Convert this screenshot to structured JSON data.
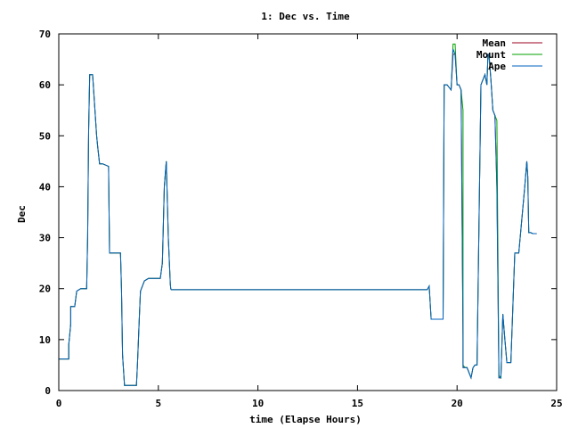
{
  "chart_data": {
    "type": "line",
    "title": "1: Dec vs. Time",
    "xlabel": "time (Elapse Hours)",
    "ylabel": "Dec",
    "xlim": [
      0,
      25
    ],
    "ylim": [
      0,
      70
    ],
    "x_ticks": [
      0,
      5,
      10,
      15,
      20,
      25
    ],
    "y_ticks": [
      0,
      10,
      20,
      30,
      40,
      50,
      60,
      70
    ],
    "grid": false,
    "legend_position": "top-right",
    "series": [
      {
        "name": "Mean",
        "color": "#9b0020",
        "x": [
          0,
          0.5,
          0.5,
          0.6,
          0.6,
          0.8,
          0.9,
          1.1,
          1.4,
          1.45,
          1.5,
          1.55,
          1.6,
          1.7,
          1.9,
          1.95,
          2.05,
          2.2,
          2.2,
          2.5,
          2.55,
          2.6,
          3.1,
          3.15,
          3.2,
          3.3,
          3.35,
          3.9,
          3.95,
          4.05,
          4.1,
          4.3,
          4.5,
          5.1,
          5.2,
          5.3,
          5.4,
          5.5,
          5.6,
          5.62,
          5.65,
          5.7,
          18.5,
          18.6,
          18.7,
          19.3,
          19.35,
          19.5,
          19.7,
          19.8,
          19.9,
          20.0,
          20.1,
          20.2,
          20.3,
          20.3,
          20.4,
          20.45,
          20.5,
          20.5,
          20.7,
          20.8,
          20.9,
          21.0,
          21.2,
          21.4,
          21.5,
          21.55,
          21.6,
          21.7,
          21.8,
          21.9,
          22.0,
          22.1,
          22.2,
          22.3,
          22.4,
          22.5,
          22.6,
          22.7,
          22.9,
          23.0,
          23.1,
          23.4,
          23.5,
          23.55,
          23.6,
          23.7,
          23.8,
          24.0
        ],
        "y": [
          6.2,
          6.2,
          9,
          13,
          16.5,
          16.5,
          19.5,
          20,
          20,
          30,
          51,
          62,
          62,
          62,
          50,
          48,
          44.5,
          44.5,
          44.5,
          44,
          27,
          27,
          27,
          20,
          7,
          1,
          1,
          1,
          5,
          15,
          19.5,
          21.5,
          22,
          22,
          25,
          40,
          45,
          30,
          21,
          20,
          19.8,
          19.8,
          19.8,
          20.5,
          14,
          14,
          60,
          60,
          59,
          66,
          66,
          60,
          60,
          59,
          10,
          4.5,
          4.5,
          4.5,
          4.5,
          4.5,
          2.5,
          4.5,
          5,
          5,
          60,
          62,
          60,
          66,
          66,
          61,
          55,
          54,
          40,
          2.5,
          2.5,
          15,
          10,
          5.5,
          5.5,
          5.5,
          27,
          27,
          27,
          40,
          45,
          42,
          31,
          31,
          30.8,
          30.8
        ]
      },
      {
        "name": "Mount",
        "color": "#00a000",
        "x": [
          0,
          0.5,
          0.5,
          0.6,
          0.6,
          0.8,
          0.9,
          1.1,
          1.4,
          1.45,
          1.5,
          1.55,
          1.6,
          1.7,
          1.9,
          1.95,
          2.05,
          2.2,
          2.2,
          2.5,
          2.55,
          2.6,
          3.1,
          3.15,
          3.2,
          3.3,
          3.35,
          3.9,
          3.95,
          4.05,
          4.1,
          4.3,
          4.5,
          5.1,
          5.2,
          5.3,
          5.4,
          5.5,
          5.6,
          5.62,
          5.65,
          5.7,
          18.5,
          18.6,
          18.7,
          19.3,
          19.35,
          19.5,
          19.7,
          19.8,
          19.9,
          20.0,
          20.1,
          20.2,
          20.3,
          20.3,
          20.4,
          20.45,
          20.5,
          20.5,
          20.7,
          20.8,
          20.9,
          21.0,
          21.2,
          21.4,
          21.5,
          21.55,
          21.6,
          21.7,
          21.8,
          21.9,
          22.0,
          22.1,
          22.2,
          22.3,
          22.4,
          22.5,
          22.6,
          22.7,
          22.9,
          23.0,
          23.1,
          23.4,
          23.5,
          23.55,
          23.6,
          23.7,
          23.8,
          24.0
        ],
        "y": [
          6.2,
          6.2,
          9,
          13,
          16.5,
          16.5,
          19.5,
          20,
          20,
          30,
          51,
          62,
          62,
          62,
          50,
          48,
          44.5,
          44.5,
          44.5,
          44,
          27,
          27,
          27,
          20,
          7,
          1,
          1,
          1,
          5,
          15,
          19.5,
          21.5,
          22,
          22,
          25,
          40,
          45,
          30,
          21,
          20,
          19.8,
          19.8,
          19.8,
          20.5,
          14,
          14,
          60,
          60,
          59,
          68,
          68,
          60,
          60,
          59,
          55,
          5,
          4.5,
          4.5,
          4.5,
          4.5,
          2.5,
          4.5,
          5,
          5,
          60,
          62,
          60,
          66,
          66,
          61,
          55,
          54,
          53,
          3,
          2.5,
          15,
          10,
          5.5,
          5.5,
          5.5,
          27,
          27,
          27,
          40,
          45,
          42,
          31,
          31,
          30.8,
          30.8
        ]
      },
      {
        "name": "Ape",
        "color": "#0060c0",
        "x": [
          0,
          0.5,
          0.5,
          0.6,
          0.6,
          0.8,
          0.9,
          1.1,
          1.4,
          1.45,
          1.5,
          1.55,
          1.6,
          1.7,
          1.9,
          1.95,
          2.05,
          2.2,
          2.2,
          2.5,
          2.55,
          2.6,
          3.1,
          3.15,
          3.2,
          3.3,
          3.35,
          3.9,
          3.95,
          4.05,
          4.1,
          4.3,
          4.5,
          5.1,
          5.2,
          5.3,
          5.4,
          5.5,
          5.6,
          5.62,
          5.65,
          5.7,
          18.5,
          18.6,
          18.7,
          19.3,
          19.35,
          19.5,
          19.7,
          19.8,
          19.9,
          20.0,
          20.1,
          20.2,
          20.3,
          20.3,
          20.4,
          20.45,
          20.5,
          20.5,
          20.7,
          20.8,
          20.9,
          21.0,
          21.2,
          21.4,
          21.5,
          21.55,
          21.6,
          21.7,
          21.8,
          21.9,
          22.0,
          22.1,
          22.2,
          22.3,
          22.4,
          22.5,
          22.6,
          22.7,
          22.9,
          23.0,
          23.1,
          23.4,
          23.5,
          23.55,
          23.6,
          23.7,
          23.8,
          24.0
        ],
        "y": [
          6.2,
          6.2,
          9,
          13,
          16.5,
          16.5,
          19.5,
          20,
          20,
          30,
          51,
          62,
          62,
          62,
          50,
          48,
          44.5,
          44.5,
          44.5,
          44,
          27,
          27,
          27,
          20,
          7,
          1,
          1,
          1,
          5,
          15,
          19.5,
          21.5,
          22,
          22,
          25,
          40,
          45,
          30,
          21,
          20,
          19.8,
          19.8,
          19.8,
          20.5,
          14,
          14,
          60,
          60,
          59,
          67,
          66,
          60,
          60,
          59,
          10,
          4.5,
          4.5,
          4.5,
          4.5,
          4.5,
          2.5,
          4.5,
          5,
          5,
          60,
          62,
          60,
          66,
          66,
          61,
          55,
          54,
          40,
          2.5,
          2.5,
          15,
          10,
          5.5,
          5.5,
          5.5,
          27,
          27,
          27,
          40,
          45,
          42,
          31,
          31,
          30.8,
          30.8
        ]
      }
    ]
  }
}
